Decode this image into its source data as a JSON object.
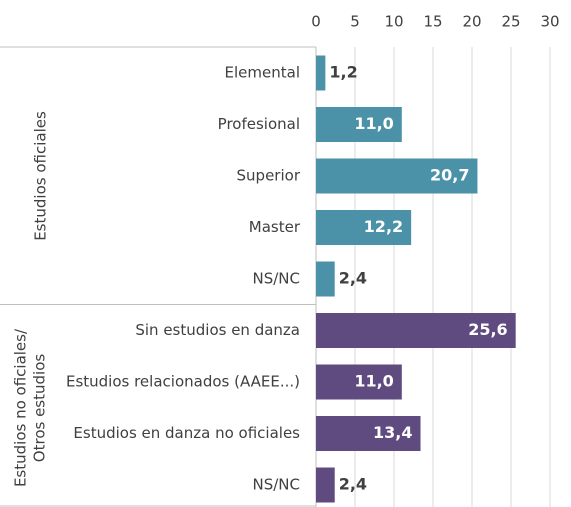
{
  "chart_data": {
    "type": "bar",
    "orientation": "horizontal",
    "xlim": [
      0,
      30
    ],
    "xticks": [
      0,
      5,
      10,
      15,
      20,
      25,
      30
    ],
    "grid": true,
    "series": [
      {
        "name": "Estudios oficiales",
        "color": "#4b92a9",
        "categories": [
          "Elemental",
          "Profesional",
          "Superior",
          "Master",
          "NS/NC"
        ],
        "values": [
          1.2,
          11.0,
          20.7,
          12.2,
          2.4
        ],
        "value_labels": [
          "1,2",
          "11,0",
          "20,7",
          "12,2",
          "2,4"
        ]
      },
      {
        "name": "Estudios no oficiales/ Otros estudios",
        "color": "#5f4b7f",
        "categories": [
          "Sin estudios en danza",
          "Estudios relacionados (AAEE...)",
          "Estudios en danza no oficiales",
          "NS/NC"
        ],
        "values": [
          25.6,
          11.0,
          13.4,
          2.4
        ],
        "value_labels": [
          "25,6",
          "11,0",
          "13,4",
          "2,4"
        ]
      }
    ]
  }
}
